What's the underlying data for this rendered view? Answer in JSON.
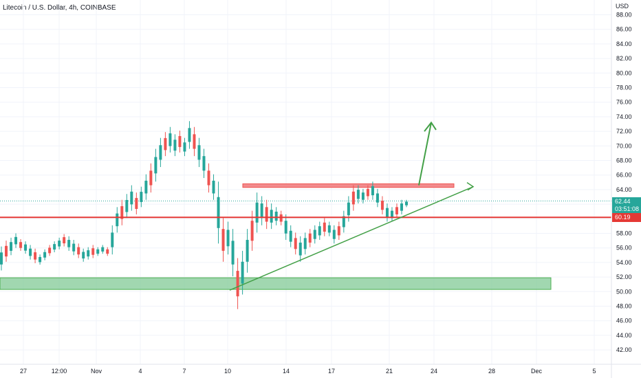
{
  "header": {
    "title": "Litecoin / U.S. Dollar, 4h, COINBASE",
    "currency": "USD"
  },
  "price_badge": {
    "price": "62.44",
    "countdown": "03:51:08"
  },
  "support_badge": {
    "price": "60.19"
  },
  "colors": {
    "up": "#26a69a",
    "down": "#ef5350",
    "support_line": "#e53935",
    "resistance_zone": "#f28b8e",
    "support_zone": "#81c995",
    "trend": "#43a047"
  },
  "chart_data": {
    "type": "candlestick",
    "title": "Litecoin / U.S. Dollar, 4h, COINBASE",
    "y_axis": {
      "label": "USD",
      "range": [
        41,
        88
      ],
      "ticks": [
        "42.00",
        "44.00",
        "46.00",
        "48.00",
        "50.00",
        "52.00",
        "54.00",
        "56.00",
        "58.00",
        "60.00",
        "62.00",
        "64.00",
        "66.00",
        "68.00",
        "70.00",
        "72.00",
        "74.00",
        "76.00",
        "78.00",
        "80.00",
        "82.00",
        "84.00",
        "86.00",
        "88.00"
      ]
    },
    "x_axis": {
      "ticks": [
        "27",
        "12:00",
        "Nov",
        "4",
        "7",
        "10",
        "14",
        "17",
        "21",
        "24",
        "28",
        "Dec",
        "5"
      ]
    },
    "current_price": 62.44,
    "horizontal_line": 60.19,
    "resistance_zone": {
      "low": 64.3,
      "high": 64.8
    },
    "support_zone": {
      "low": 50.3,
      "high": 51.9
    },
    "series": [
      {
        "low": 52.9,
        "high": 56.2
      },
      {
        "low": 54.1,
        "high": 57.0
      },
      {
        "low": 55.0,
        "high": 57.4
      },
      {
        "low": 56.0,
        "high": 58.0
      },
      {
        "low": 55.6,
        "high": 57.2
      },
      {
        "low": 55.2,
        "high": 56.9
      },
      {
        "low": 54.4,
        "high": 56.4
      },
      {
        "low": 53.9,
        "high": 55.9
      },
      {
        "low": 53.7,
        "high": 55.1
      },
      {
        "low": 54.3,
        "high": 55.8
      },
      {
        "low": 54.9,
        "high": 56.4
      },
      {
        "low": 55.4,
        "high": 56.9
      },
      {
        "low": 55.8,
        "high": 57.4
      },
      {
        "low": 56.2,
        "high": 57.9
      },
      {
        "low": 55.6,
        "high": 57.6
      },
      {
        "low": 55.0,
        "high": 57.1
      },
      {
        "low": 54.6,
        "high": 56.6
      },
      {
        "low": 54.1,
        "high": 55.9
      },
      {
        "low": 54.4,
        "high": 56.1
      },
      {
        "low": 54.6,
        "high": 56.4
      },
      {
        "low": 54.9,
        "high": 56.1
      },
      {
        "low": 55.2,
        "high": 56.4
      },
      {
        "low": 54.9,
        "high": 56.1
      },
      {
        "low": 55.1,
        "high": 59.1
      },
      {
        "low": 58.1,
        "high": 61.6
      },
      {
        "low": 59.1,
        "high": 62.6
      },
      {
        "low": 60.1,
        "high": 63.4
      },
      {
        "low": 61.1,
        "high": 64.6
      },
      {
        "low": 60.6,
        "high": 63.6
      },
      {
        "low": 61.6,
        "high": 64.4
      },
      {
        "low": 62.6,
        "high": 66.1
      },
      {
        "low": 63.6,
        "high": 67.6
      },
      {
        "low": 65.1,
        "high": 69.6
      },
      {
        "low": 67.1,
        "high": 71.1
      },
      {
        "low": 68.6,
        "high": 71.9
      },
      {
        "low": 69.1,
        "high": 72.6
      },
      {
        "low": 68.6,
        "high": 71.6
      },
      {
        "low": 69.1,
        "high": 72.1
      },
      {
        "low": 68.6,
        "high": 71.1
      },
      {
        "low": 69.6,
        "high": 73.4
      },
      {
        "low": 68.6,
        "high": 72.6
      },
      {
        "low": 67.1,
        "high": 71.1
      },
      {
        "low": 65.6,
        "high": 69.6
      },
      {
        "low": 63.6,
        "high": 67.6
      },
      {
        "low": 62.6,
        "high": 66.1
      },
      {
        "low": 56.6,
        "high": 65.1
      },
      {
        "low": 54.1,
        "high": 60.1
      },
      {
        "low": 55.1,
        "high": 59.6
      },
      {
        "low": 52.1,
        "high": 58.6
      },
      {
        "low": 47.6,
        "high": 54.6
      },
      {
        "low": 49.6,
        "high": 55.6
      },
      {
        "low": 52.6,
        "high": 58.6
      },
      {
        "low": 55.6,
        "high": 61.1
      },
      {
        "low": 58.1,
        "high": 63.6
      },
      {
        "low": 59.1,
        "high": 63.1
      },
      {
        "low": 58.6,
        "high": 62.6
      },
      {
        "low": 58.6,
        "high": 62.1
      },
      {
        "low": 59.1,
        "high": 61.6
      },
      {
        "low": 59.1,
        "high": 61.1
      },
      {
        "low": 57.1,
        "high": 60.6
      },
      {
        "low": 56.1,
        "high": 59.1
      },
      {
        "low": 55.1,
        "high": 58.1
      },
      {
        "low": 54.1,
        "high": 57.6
      },
      {
        "low": 55.1,
        "high": 58.1
      },
      {
        "low": 56.1,
        "high": 58.6
      },
      {
        "low": 56.6,
        "high": 59.1
      },
      {
        "low": 57.1,
        "high": 59.6
      },
      {
        "low": 57.6,
        "high": 60.1
      },
      {
        "low": 57.6,
        "high": 59.6
      },
      {
        "low": 56.6,
        "high": 59.1
      },
      {
        "low": 57.1,
        "high": 59.6
      },
      {
        "low": 58.1,
        "high": 61.1
      },
      {
        "low": 59.6,
        "high": 63.1
      },
      {
        "low": 61.1,
        "high": 64.6
      },
      {
        "low": 62.1,
        "high": 64.6
      },
      {
        "low": 62.1,
        "high": 64.1
      },
      {
        "low": 62.6,
        "high": 64.6
      },
      {
        "low": 62.6,
        "high": 65.1
      },
      {
        "low": 61.6,
        "high": 64.1
      },
      {
        "low": 60.6,
        "high": 63.1
      },
      {
        "low": 59.6,
        "high": 62.1
      },
      {
        "low": 59.6,
        "high": 61.6
      },
      {
        "low": 60.1,
        "high": 62.1
      },
      {
        "low": 60.6,
        "high": 62.6
      },
      {
        "low": 61.6,
        "high": 62.6
      }
    ],
    "annotations": [
      {
        "type": "trend_line",
        "from": {
          "date": "10",
          "price": 50.2
        },
        "to": {
          "date": "25",
          "price": 64.4
        }
      },
      {
        "type": "up_arrow",
        "from": {
          "date": "23",
          "price": 64.6
        },
        "to": {
          "date": "23",
          "price": 73.2
        }
      }
    ]
  }
}
